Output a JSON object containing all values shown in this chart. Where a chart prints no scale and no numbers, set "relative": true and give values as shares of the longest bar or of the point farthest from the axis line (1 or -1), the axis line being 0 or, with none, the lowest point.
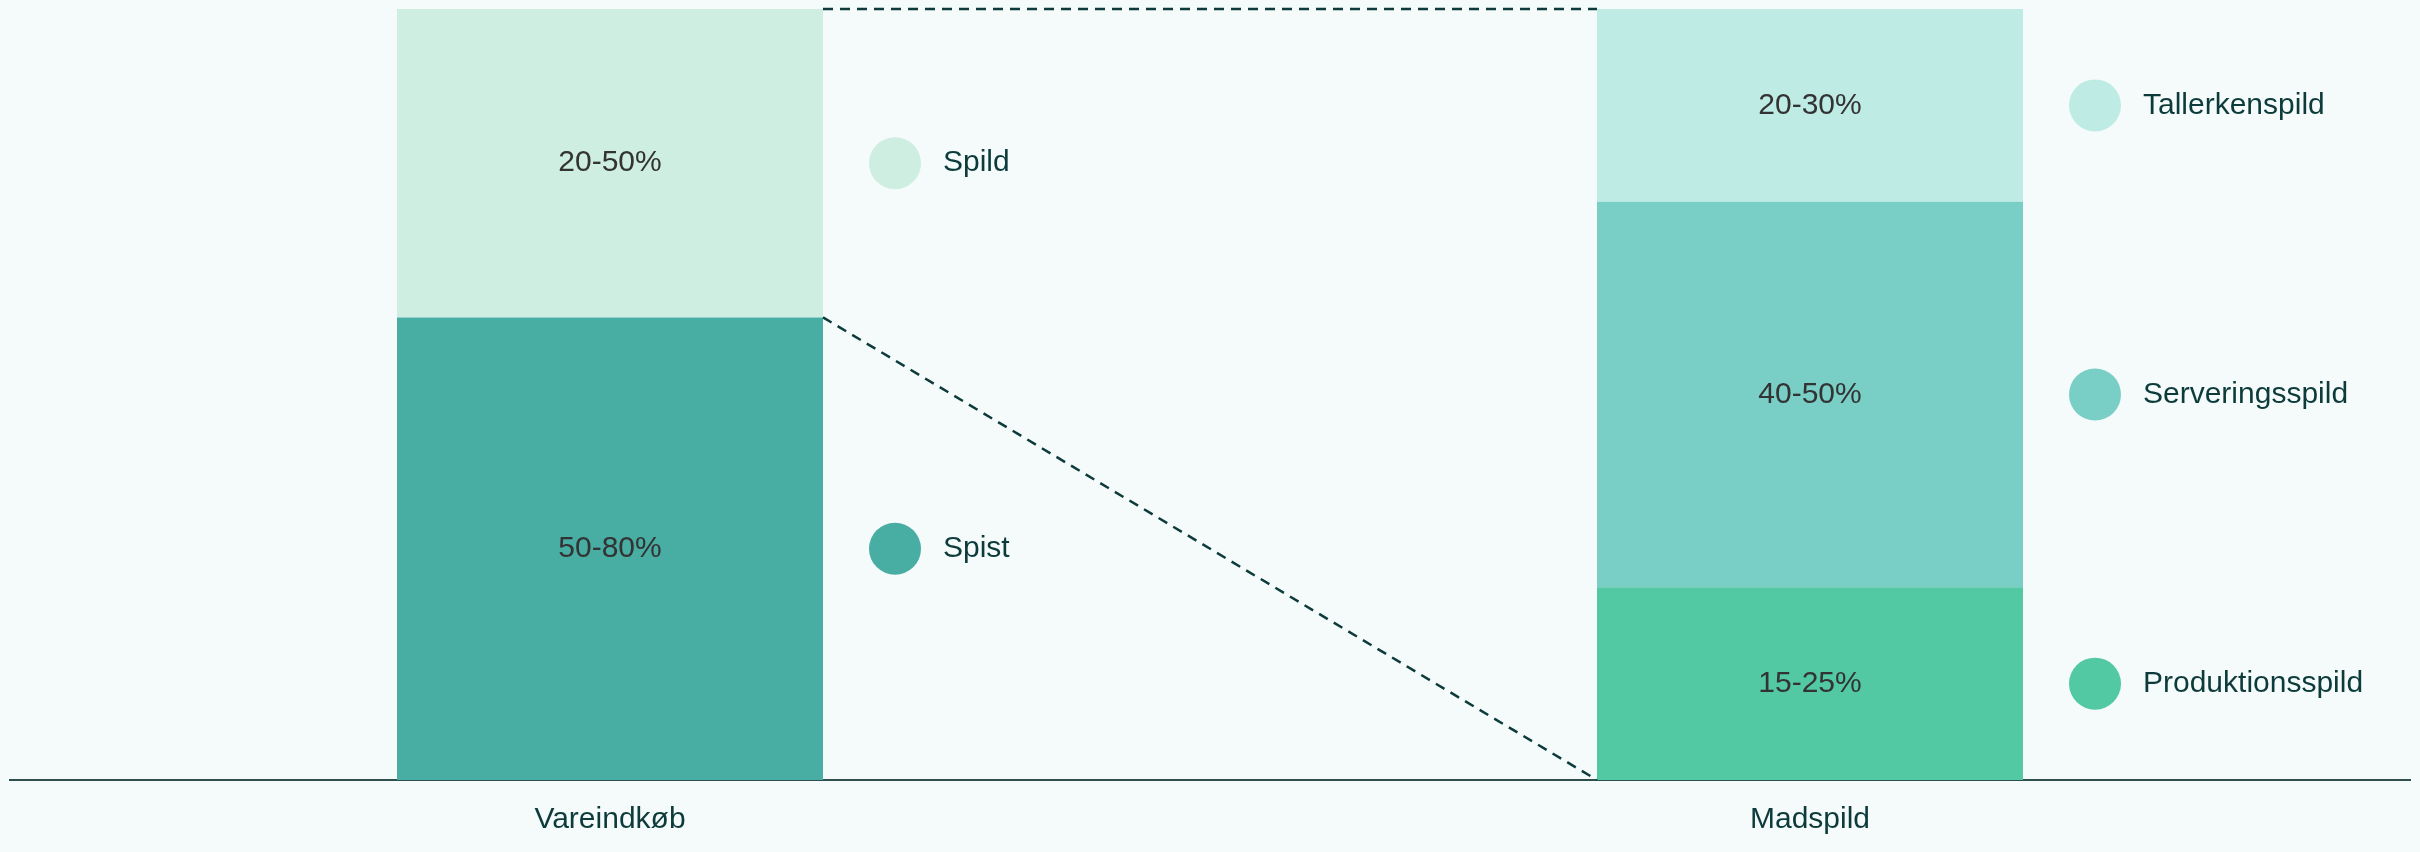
{
  "chart_data": {
    "type": "bar",
    "stacked": true,
    "relative": true,
    "legend": "right",
    "categories": [
      "Vareindkøb",
      "Madspild"
    ],
    "series": [
      {
        "name": "Spist",
        "color": "#48ada3",
        "values": [
          0.6,
          null
        ]
      },
      {
        "name": "Spild",
        "color": "#cdeee0",
        "values": [
          0.4,
          null
        ]
      },
      {
        "name": "Produktionsspild",
        "color": "#52c9a2",
        "values": [
          null,
          0.25
        ]
      },
      {
        "name": "Serveringsspild",
        "color": "#79cfc6",
        "values": [
          null,
          0.5
        ]
      },
      {
        "name": "Tallerkenspild",
        "color": "#beebe4",
        "values": [
          null,
          0.25
        ]
      }
    ],
    "annotations": [
      "50-80%",
      "20-50%",
      "15-25%",
      "40-50%",
      "20-30%"
    ]
  }
}
